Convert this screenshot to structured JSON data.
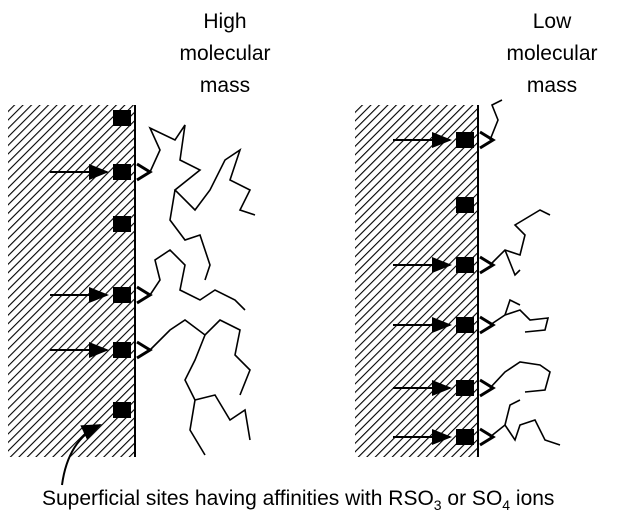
{
  "labels": [
    {
      "lines": [
        "High",
        "molecular",
        "mass"
      ]
    },
    {
      "lines": [
        "Low",
        "molecular",
        "mass"
      ]
    }
  ],
  "caption": {
    "parts": [
      "Superficial sites having affinities with RSO",
      "3",
      " or SO",
      "4",
      " ions"
    ]
  }
}
